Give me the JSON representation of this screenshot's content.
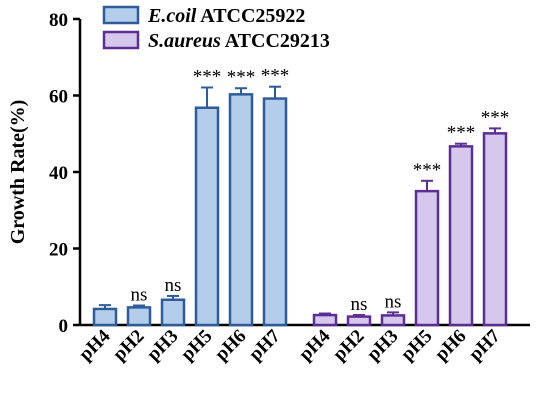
{
  "chart_data": {
    "type": "bar",
    "ylabel": "Growth Rate(%)",
    "ylim": [
      0,
      80
    ],
    "yticks": [
      0,
      20,
      40,
      60,
      80
    ],
    "grid": false,
    "legend_position": "top-left",
    "groups": [
      {
        "name_italic": "E.coil",
        "name_rest": " ATCC25922",
        "fill": "#B4CDEA",
        "stroke": "#2E5C9A",
        "categories": [
          "pH4",
          "pH2",
          "pH3",
          "pH5",
          "pH6",
          "pH7"
        ],
        "values": [
          4.2,
          4.6,
          6.6,
          56.8,
          60.3,
          59.2
        ],
        "errors": [
          1.0,
          0.5,
          1.0,
          5.3,
          1.6,
          3.1
        ],
        "significance": [
          "",
          "ns",
          "ns",
          "***",
          "***",
          "***"
        ]
      },
      {
        "name_italic": "S.aureus",
        "name_rest": " ATCC29213",
        "fill": "#D6C8EC",
        "stroke": "#5B2E93",
        "categories": [
          "pH4",
          "pH2",
          "pH3",
          "pH5",
          "pH6",
          "pH7"
        ],
        "values": [
          2.6,
          2.2,
          2.5,
          35.0,
          46.7,
          50.1
        ],
        "errors": [
          0.4,
          0.4,
          0.8,
          2.7,
          0.7,
          1.3
        ],
        "significance": [
          "",
          "ns",
          "ns",
          "***",
          "***",
          "***"
        ]
      }
    ]
  }
}
